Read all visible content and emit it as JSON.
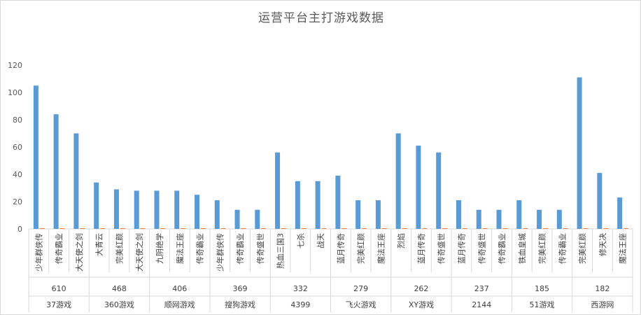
{
  "chart_data": {
    "type": "bar",
    "title": "运营平台主打游戏数据",
    "ylim": [
      0,
      120
    ],
    "yticks": [
      0,
      20,
      40,
      60,
      80,
      100,
      120
    ],
    "grid": false,
    "colors": {
      "main": "#5b9bd5",
      "secondary": "#ed7d31"
    },
    "groups": [
      {
        "platform": "37游戏",
        "count": "610",
        "games": [
          {
            "name": "少年群侠传",
            "value": 105,
            "secondary": 0.5
          },
          {
            "name": "传奇霸业",
            "value": 84,
            "secondary": 0.5
          },
          {
            "name": "大天使之剑",
            "value": 70,
            "secondary": 0.5
          }
        ]
      },
      {
        "platform": "360游戏",
        "count": "468",
        "games": [
          {
            "name": "大青云",
            "value": 34,
            "secondary": 0.5
          },
          {
            "name": "完美红颜",
            "value": 29,
            "secondary": 0.5
          },
          {
            "name": "大天使之剑",
            "value": 28,
            "secondary": 0.5
          }
        ]
      },
      {
        "platform": "顺网游戏",
        "count": "406",
        "games": [
          {
            "name": "九阴绝学",
            "value": 28,
            "secondary": 0.5
          },
          {
            "name": "魔法王座",
            "value": 28,
            "secondary": 0.5
          },
          {
            "name": "传奇霸业",
            "value": 25,
            "secondary": 0.5
          }
        ]
      },
      {
        "platform": "搜狗游戏",
        "count": "369",
        "games": [
          {
            "name": "少年群侠传",
            "value": 21,
            "secondary": 0.5
          },
          {
            "name": "传奇霸业",
            "value": 14,
            "secondary": 0.5
          },
          {
            "name": "传奇盛世",
            "value": 14,
            "secondary": 0.5
          }
        ]
      },
      {
        "platform": "4399",
        "count": "332",
        "games": [
          {
            "name": "热血三国3",
            "value": 56,
            "secondary": 0.5
          },
          {
            "name": "七杀",
            "value": 35,
            "secondary": 0.5
          },
          {
            "name": "战天",
            "value": 35,
            "secondary": 0.5
          }
        ]
      },
      {
        "platform": "飞火游戏",
        "count": "279",
        "games": [
          {
            "name": "蓝月传奇",
            "value": 39,
            "secondary": 0.5
          },
          {
            "name": "完美红颜",
            "value": 21,
            "secondary": 0.5
          },
          {
            "name": "魔法王座",
            "value": 21,
            "secondary": 0.5
          }
        ]
      },
      {
        "platform": "XY游戏",
        "count": "262",
        "games": [
          {
            "name": "烈焰",
            "value": 70,
            "secondary": 0.5
          },
          {
            "name": "蓝月传奇",
            "value": 61,
            "secondary": 0.5
          },
          {
            "name": "传奇盛世",
            "value": 56,
            "secondary": 0.5
          }
        ]
      },
      {
        "platform": "2144",
        "count": "237",
        "games": [
          {
            "name": "蓝月传奇",
            "value": 21,
            "secondary": 0.5
          },
          {
            "name": "传奇盛世",
            "value": 14,
            "secondary": 0.5
          },
          {
            "name": "传奇霸业",
            "value": 14,
            "secondary": 0.5
          }
        ]
      },
      {
        "platform": "51游戏",
        "count": "185",
        "games": [
          {
            "name": "铁血皇城",
            "value": 21,
            "secondary": 0.5
          },
          {
            "name": "完美红颜",
            "value": 14,
            "secondary": 0.5
          },
          {
            "name": "传奇霸业",
            "value": 14,
            "secondary": 0.5
          }
        ]
      },
      {
        "platform": "西游网",
        "count": "182",
        "games": [
          {
            "name": "完美红颜",
            "value": 111,
            "secondary": 0.5
          },
          {
            "name": "修天决",
            "value": 41,
            "secondary": 0.5
          },
          {
            "name": "魔法王座",
            "value": 23,
            "secondary": 0.5
          }
        ]
      }
    ]
  }
}
